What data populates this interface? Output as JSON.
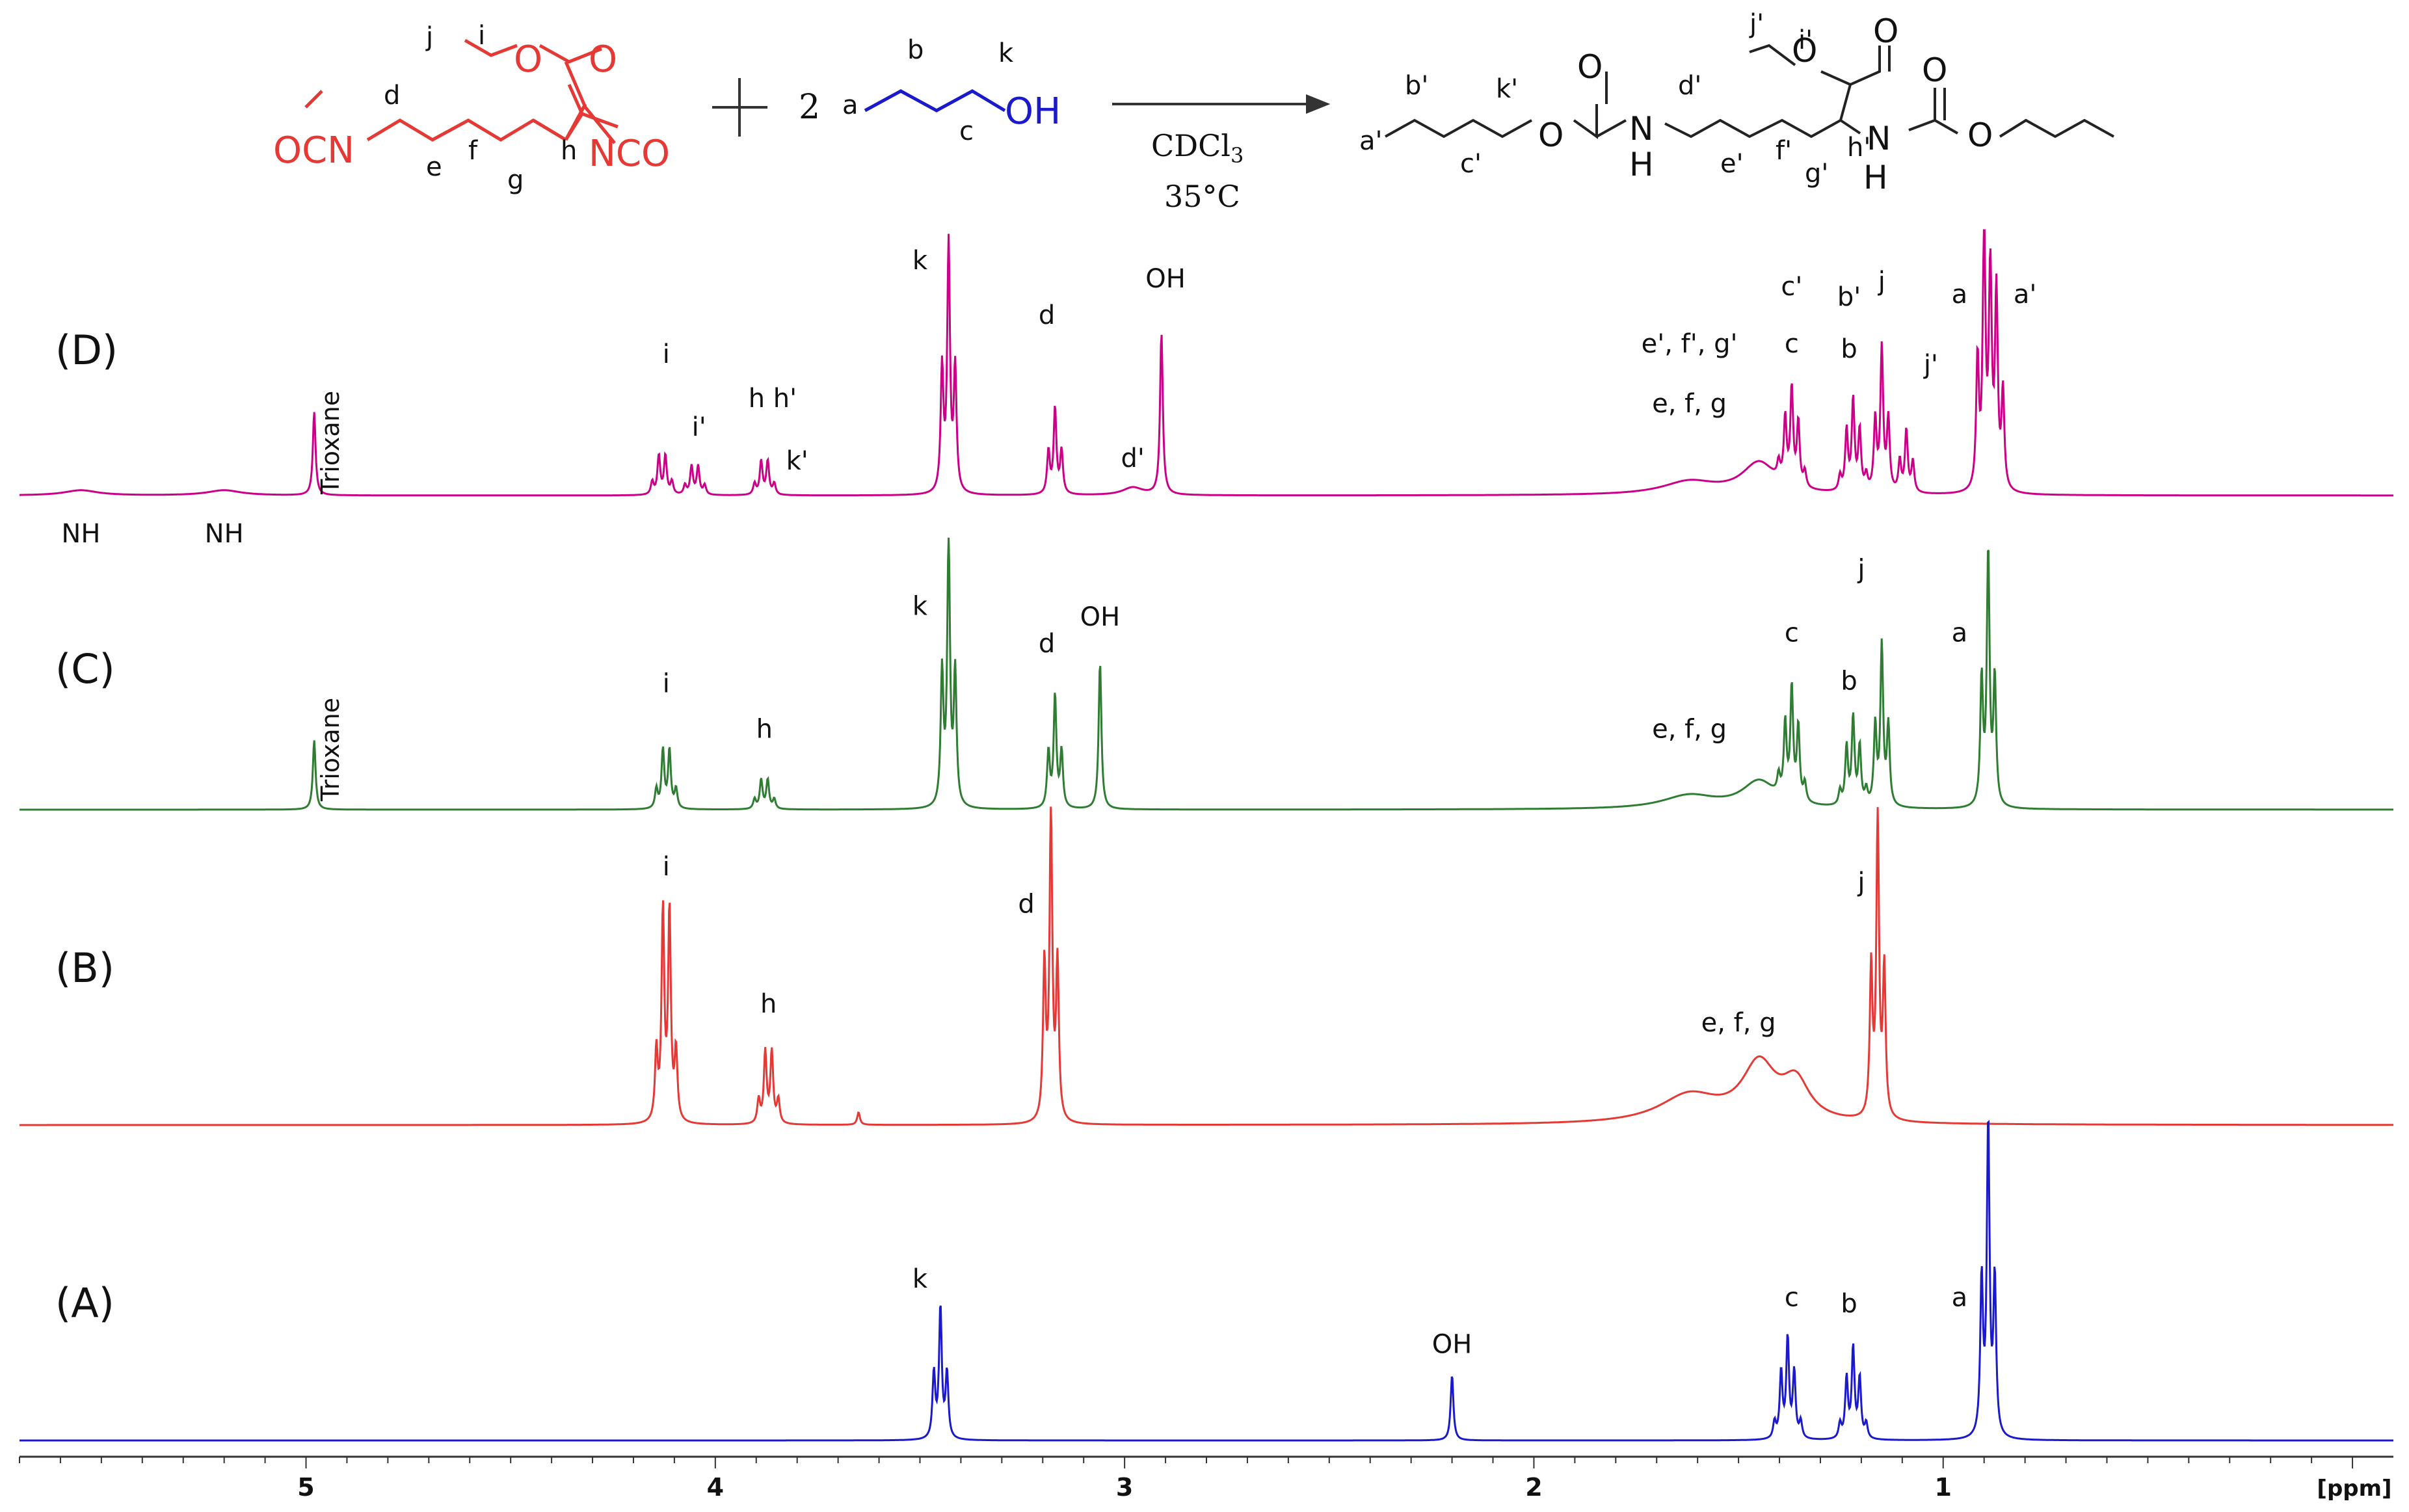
{
  "scheme": {
    "reactant1": {
      "ocn_left": "OCN",
      "nco_right": "NCO",
      "ester_o": "O",
      "carbonyl_o": "O",
      "labels": [
        "j",
        "i",
        "d",
        "e",
        "f",
        "g",
        "h"
      ]
    },
    "plus": "+",
    "coefficient": "2",
    "reactant2": {
      "oh": "OH",
      "labels": [
        "a",
        "b",
        "c",
        "k"
      ]
    },
    "conditions": {
      "solvent": "CDCl",
      "solvent_sub": "3",
      "temperature": "35°C"
    },
    "product": {
      "atoms": [
        "O",
        "O",
        "N",
        "H",
        "O",
        "O",
        "N",
        "H",
        "O",
        "O"
      ],
      "labels": [
        "j'",
        "i'",
        "b'",
        "k'",
        "d'",
        "a'",
        "c'",
        "e'",
        "f'",
        "g'",
        "h'"
      ]
    }
  },
  "chart_data": {
    "type": "line",
    "title": "",
    "xlabel": "[ppm]",
    "ylabel": "",
    "xlim": [
      5.7,
      -0.1
    ],
    "x_axis_reversed": true,
    "x_ticks": [
      5,
      4,
      3,
      2,
      1
    ],
    "grid": false,
    "series": [
      {
        "name": "(D)",
        "color": "#cc0088",
        "peaks": [
          {
            "ppm": 5.55,
            "h": 0.02,
            "w": 0.05
          },
          {
            "ppm": 5.2,
            "h": 0.02,
            "w": 0.05
          },
          {
            "ppm": 4.98,
            "h": 0.32
          },
          {
            "ppm": 4.13,
            "h": 0.15,
            "mult": 4
          },
          {
            "ppm": 4.05,
            "h": 0.11,
            "mult": 4
          },
          {
            "ppm": 3.88,
            "h": 0.13,
            "mult": 4
          },
          {
            "ppm": 3.43,
            "h": 0.95,
            "mult": 3
          },
          {
            "ppm": 3.17,
            "h": 0.33,
            "mult": 3
          },
          {
            "ppm": 2.98,
            "h": 0.03,
            "w": 0.03
          },
          {
            "ppm": 2.91,
            "h": 0.62
          },
          {
            "ppm": 1.62,
            "h": 0.05,
            "w": 0.08
          },
          {
            "ppm": 1.45,
            "h": 0.12,
            "w": 0.05
          },
          {
            "ppm": 1.37,
            "h": 0.37,
            "mult": 5
          },
          {
            "ppm": 1.22,
            "h": 0.35,
            "mult": 5
          },
          {
            "ppm": 1.15,
            "h": 0.55,
            "mult": 3
          },
          {
            "ppm": 1.09,
            "h": 0.24,
            "mult": 3
          },
          {
            "ppm": 0.9,
            "h": 1.0,
            "mult": 3
          },
          {
            "ppm": 0.87,
            "h": 0.75,
            "mult": 3
          }
        ],
        "labels": [
          {
            "text": "i",
            "ppm": 4.12,
            "h": 0.51
          },
          {
            "text": "i'",
            "ppm": 4.04,
            "h": 0.23
          },
          {
            "text": "h h'",
            "ppm": 3.86,
            "h": 0.34
          },
          {
            "text": "k'",
            "ppm": 3.8,
            "h": 0.1
          },
          {
            "text": "k",
            "ppm": 3.5,
            "h": 0.87
          },
          {
            "text": "d",
            "ppm": 3.19,
            "h": 0.66
          },
          {
            "text": "OH",
            "ppm": 2.9,
            "h": 0.8
          },
          {
            "text": "d'",
            "ppm": 2.98,
            "h": 0.11
          },
          {
            "text": "e', f', g'",
            "ppm": 1.62,
            "h": 0.55
          },
          {
            "text": "e, f, g",
            "ppm": 1.62,
            "h": 0.32
          },
          {
            "text": "c'",
            "ppm": 1.37,
            "h": 0.77
          },
          {
            "text": "c",
            "ppm": 1.37,
            "h": 0.55
          },
          {
            "text": "b'",
            "ppm": 1.23,
            "h": 0.73
          },
          {
            "text": "b",
            "ppm": 1.23,
            "h": 0.53
          },
          {
            "text": "j",
            "ppm": 1.15,
            "h": 0.79
          },
          {
            "text": "j'",
            "ppm": 1.03,
            "h": 0.47
          },
          {
            "text": "a",
            "ppm": 0.96,
            "h": 0.74
          },
          {
            "text": "a'",
            "ppm": 0.8,
            "h": 0.74
          },
          {
            "text": "NH",
            "ppm": 5.55,
            "h": -0.18
          },
          {
            "text": "NH",
            "ppm": 5.2,
            "h": -0.18
          }
        ]
      },
      {
        "name": "(C)",
        "color": "#2e7d32",
        "peaks": [
          {
            "ppm": 4.98,
            "h": 0.26
          },
          {
            "ppm": 4.12,
            "h": 0.22,
            "mult": 4
          },
          {
            "ppm": 3.88,
            "h": 0.11,
            "mult": 4
          },
          {
            "ppm": 3.43,
            "h": 1.0,
            "mult": 3
          },
          {
            "ppm": 3.17,
            "h": 0.42,
            "mult": 3
          },
          {
            "ppm": 3.06,
            "h": 0.55
          },
          {
            "ppm": 1.62,
            "h": 0.05,
            "w": 0.08
          },
          {
            "ppm": 1.45,
            "h": 0.1,
            "w": 0.05
          },
          {
            "ppm": 1.37,
            "h": 0.42,
            "mult": 5
          },
          {
            "ppm": 1.22,
            "h": 0.33,
            "mult": 5
          },
          {
            "ppm": 1.15,
            "h": 0.6,
            "mult": 3
          },
          {
            "ppm": 0.89,
            "h": 0.95,
            "mult": 3
          }
        ],
        "labels": [
          {
            "text": "i",
            "ppm": 4.12,
            "h": 0.44
          },
          {
            "text": "h",
            "ppm": 3.88,
            "h": 0.27
          },
          {
            "text": "k",
            "ppm": 3.5,
            "h": 0.73
          },
          {
            "text": "d",
            "ppm": 3.19,
            "h": 0.59
          },
          {
            "text": "OH",
            "ppm": 3.06,
            "h": 0.69
          },
          {
            "text": "e, f, g",
            "ppm": 1.62,
            "h": 0.27
          },
          {
            "text": "c",
            "ppm": 1.37,
            "h": 0.63
          },
          {
            "text": "b",
            "ppm": 1.23,
            "h": 0.45
          },
          {
            "text": "j",
            "ppm": 1.2,
            "h": 0.87
          },
          {
            "text": "a",
            "ppm": 0.96,
            "h": 0.63
          }
        ]
      },
      {
        "name": "(B)",
        "color": "#e53935",
        "peaks": [
          {
            "ppm": 4.12,
            "h": 0.67,
            "mult": 4
          },
          {
            "ppm": 3.87,
            "h": 0.23,
            "mult": 4
          },
          {
            "ppm": 3.65,
            "h": 0.04
          },
          {
            "ppm": 3.18,
            "h": 1.0,
            "mult": 3
          },
          {
            "ppm": 1.62,
            "h": 0.09,
            "w": 0.09
          },
          {
            "ppm": 1.45,
            "h": 0.18,
            "w": 0.05
          },
          {
            "ppm": 1.36,
            "h": 0.12,
            "w": 0.04
          },
          {
            "ppm": 1.16,
            "h": 0.95,
            "mult": 3
          }
        ],
        "labels": [
          {
            "text": "i",
            "ppm": 4.12,
            "h": 0.8
          },
          {
            "text": "h",
            "ppm": 3.87,
            "h": 0.36
          },
          {
            "text": "d",
            "ppm": 3.24,
            "h": 0.68
          },
          {
            "text": "e, f, g",
            "ppm": 1.5,
            "h": 0.3
          },
          {
            "text": "j",
            "ppm": 1.2,
            "h": 0.75
          }
        ]
      },
      {
        "name": "(A)",
        "color": "#1a1acc",
        "peaks": [
          {
            "ppm": 3.45,
            "h": 0.42,
            "mult": 3
          },
          {
            "ppm": 2.2,
            "h": 0.21
          },
          {
            "ppm": 1.38,
            "h": 0.32,
            "mult": 5
          },
          {
            "ppm": 1.22,
            "h": 0.29,
            "mult": 5
          },
          {
            "ppm": 0.89,
            "h": 1.0,
            "mult": 3
          }
        ],
        "labels": [
          {
            "text": "k",
            "ppm": 3.5,
            "h": 0.49
          },
          {
            "text": "OH",
            "ppm": 2.2,
            "h": 0.28
          },
          {
            "text": "c",
            "ppm": 1.37,
            "h": 0.43
          },
          {
            "text": "b",
            "ppm": 1.23,
            "h": 0.41
          },
          {
            "text": "a",
            "ppm": 0.96,
            "h": 0.43
          }
        ]
      }
    ],
    "annotations": [
      {
        "text": "Trioxane",
        "series": "(D)"
      },
      {
        "text": "Trioxane",
        "series": "(C)"
      }
    ]
  }
}
